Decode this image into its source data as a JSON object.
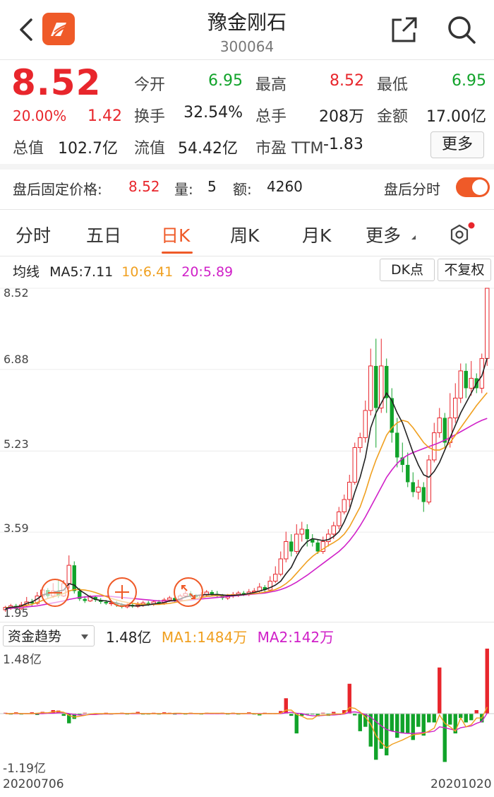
{
  "header": {
    "title": "豫金刚石",
    "code": "300064"
  },
  "quote": {
    "price": "8.52",
    "change_pct": "20.00%",
    "change_abs": "1.42",
    "fields": [
      {
        "label": "今开",
        "value": "6.95",
        "color": "#11a32a"
      },
      {
        "label": "最高",
        "value": "8.52",
        "color": "#e8262c"
      },
      {
        "label": "最低",
        "value": "6.95",
        "color": "#11a32a"
      },
      {
        "label": "换手",
        "value": "32.54%",
        "color": "#222222"
      },
      {
        "label": "总手",
        "value": "208万",
        "color": "#222222"
      },
      {
        "label": "金额",
        "value": "17.00亿",
        "color": "#222222"
      },
      {
        "label": "总值",
        "value": "102.7亿",
        "color": "#222222"
      },
      {
        "label": "流值",
        "value": "54.42亿",
        "color": "#222222"
      },
      {
        "label": "市盈 TTM",
        "value": "-1.83",
        "color": "#222222"
      }
    ],
    "more_label": "更多"
  },
  "after_hours": {
    "label": "盘后固定价格:",
    "price": "8.52",
    "vol_label": "量:",
    "vol": "5",
    "amt_label": "额:",
    "amt": "4260",
    "timeshare_label": "盘后分时",
    "toggle_on": true
  },
  "tabs": [
    {
      "label": "分时",
      "active": false
    },
    {
      "label": "五日",
      "active": false
    },
    {
      "label": "日K",
      "active": true
    },
    {
      "label": "周K",
      "active": false
    },
    {
      "label": "月K",
      "active": false
    },
    {
      "label": "更多",
      "active": false
    }
  ],
  "ma_legend": {
    "prefix": "均线",
    "ma5": "MA5:7.11",
    "ma10": "10:6.41",
    "ma20": "20:5.89",
    "ma5_color": "#222222",
    "ma10_color": "#f0a020",
    "ma20_color": "#d020c8"
  },
  "buttons": {
    "dk": "DK点",
    "adjust": "不复权"
  },
  "axis": {
    "price_ticks": [
      "8.52",
      "6.88",
      "5.23",
      "3.59",
      "1.95"
    ],
    "flow_ticks": [
      "1.48亿",
      "-1.19亿"
    ],
    "start_date": "20200706",
    "end_date": "20201020"
  },
  "flow": {
    "select_label": "资金趋势",
    "value": "1.48亿",
    "ma1": "MA1:1484万",
    "ma2": "MA2:142万"
  },
  "colors": {
    "up": "#e8262c",
    "down": "#11a32a",
    "accent": "#ef5a28"
  },
  "chart_data": [
    {
      "type": "candlestick",
      "title": "",
      "ylim": [
        1.95,
        8.52
      ],
      "series": [
        {
          "name": "MA5",
          "color": "#222222"
        },
        {
          "name": "10",
          "color": "#f0a020"
        },
        {
          "name": "20",
          "color": "#d020c8"
        }
      ],
      "candles": [
        [
          2.02,
          2.07,
          1.98,
          2.1
        ],
        [
          2.07,
          2.1,
          2.02,
          2.14
        ],
        [
          2.1,
          2.04,
          2.0,
          2.14
        ],
        [
          2.04,
          2.12,
          2.02,
          2.18
        ],
        [
          2.12,
          2.18,
          2.08,
          2.28
        ],
        [
          2.18,
          2.15,
          2.1,
          2.24
        ],
        [
          2.15,
          2.3,
          2.12,
          2.38
        ],
        [
          2.3,
          2.42,
          2.28,
          2.46
        ],
        [
          2.42,
          2.3,
          2.25,
          2.46
        ],
        [
          2.3,
          2.4,
          2.26,
          2.56
        ],
        [
          2.4,
          2.3,
          2.26,
          2.62
        ],
        [
          2.3,
          2.55,
          2.28,
          2.62
        ],
        [
          2.55,
          2.92,
          2.45,
          3.12
        ],
        [
          2.92,
          2.4,
          2.35,
          3.0
        ],
        [
          2.4,
          2.24,
          2.2,
          2.46
        ],
        [
          2.24,
          2.2,
          2.16,
          2.3
        ],
        [
          2.2,
          2.28,
          2.18,
          2.32
        ],
        [
          2.28,
          2.22,
          2.18,
          2.3
        ],
        [
          2.22,
          2.18,
          2.14,
          2.26
        ],
        [
          2.18,
          2.15,
          2.12,
          2.22
        ],
        [
          2.15,
          2.16,
          2.1,
          2.2
        ],
        [
          2.16,
          2.12,
          2.08,
          2.2
        ],
        [
          2.12,
          2.08,
          2.05,
          2.16
        ],
        [
          2.08,
          2.12,
          2.05,
          2.16
        ],
        [
          2.12,
          2.09,
          2.06,
          2.16
        ],
        [
          2.09,
          2.12,
          2.06,
          2.18
        ],
        [
          2.12,
          2.16,
          2.08,
          2.2
        ],
        [
          2.16,
          2.14,
          2.1,
          2.2
        ],
        [
          2.14,
          2.18,
          2.1,
          2.22
        ],
        [
          2.18,
          2.15,
          2.12,
          2.22
        ],
        [
          2.15,
          2.22,
          2.12,
          2.26
        ],
        [
          2.22,
          2.26,
          2.18,
          2.3
        ],
        [
          2.26,
          2.22,
          2.18,
          2.3
        ],
        [
          2.22,
          2.3,
          2.2,
          2.34
        ],
        [
          2.3,
          2.35,
          2.26,
          2.4
        ],
        [
          2.35,
          2.3,
          2.26,
          2.4
        ],
        [
          2.3,
          2.28,
          2.24,
          2.34
        ],
        [
          2.28,
          2.32,
          2.24,
          2.38
        ],
        [
          2.32,
          2.38,
          2.28,
          2.42
        ],
        [
          2.38,
          2.34,
          2.3,
          2.42
        ],
        [
          2.34,
          2.3,
          2.26,
          2.4
        ],
        [
          2.3,
          2.26,
          2.22,
          2.34
        ],
        [
          2.26,
          2.3,
          2.22,
          2.34
        ],
        [
          2.3,
          2.33,
          2.26,
          2.38
        ],
        [
          2.33,
          2.36,
          2.28,
          2.4
        ],
        [
          2.36,
          2.34,
          2.3,
          2.4
        ],
        [
          2.34,
          2.38,
          2.3,
          2.44
        ],
        [
          2.38,
          2.4,
          2.34,
          2.46
        ],
        [
          2.4,
          2.48,
          2.36,
          2.56
        ],
        [
          2.48,
          2.42,
          2.38,
          2.52
        ],
        [
          2.42,
          2.6,
          2.4,
          2.7
        ],
        [
          2.6,
          2.74,
          2.56,
          2.9
        ],
        [
          2.74,
          3.05,
          2.7,
          3.2
        ],
        [
          3.05,
          3.4,
          2.98,
          3.6
        ],
        [
          3.4,
          3.2,
          3.1,
          3.55
        ],
        [
          3.2,
          3.55,
          3.15,
          3.75
        ],
        [
          3.55,
          3.65,
          3.4,
          3.8
        ],
        [
          3.65,
          3.45,
          3.3,
          3.75
        ],
        [
          3.45,
          3.38,
          3.3,
          3.55
        ],
        [
          3.38,
          3.2,
          3.15,
          3.45
        ],
        [
          3.2,
          3.4,
          3.15,
          3.5
        ],
        [
          3.4,
          3.55,
          3.3,
          3.65
        ],
        [
          3.55,
          3.72,
          3.45,
          3.8
        ],
        [
          3.72,
          4.0,
          3.65,
          4.1
        ],
        [
          4.0,
          4.25,
          3.95,
          4.35
        ],
        [
          4.25,
          4.6,
          4.1,
          4.75
        ],
        [
          4.6,
          5.3,
          4.55,
          5.4
        ],
        [
          5.3,
          5.5,
          5.2,
          5.6
        ],
        [
          5.5,
          6.05,
          5.4,
          6.25
        ],
        [
          6.05,
          6.95,
          5.95,
          7.3
        ],
        [
          6.95,
          6.1,
          5.3,
          7.5
        ],
        [
          6.1,
          6.95,
          6.0,
          7.5
        ],
        [
          6.95,
          6.3,
          6.0,
          7.1
        ],
        [
          6.3,
          5.6,
          5.4,
          6.5
        ],
        [
          5.6,
          5.1,
          4.9,
          5.9
        ],
        [
          5.1,
          4.95,
          4.8,
          5.4
        ],
        [
          4.95,
          4.6,
          4.5,
          5.2
        ],
        [
          4.6,
          4.4,
          4.3,
          4.8
        ],
        [
          4.4,
          4.5,
          4.25,
          4.65
        ],
        [
          4.5,
          4.2,
          4.0,
          4.6
        ],
        [
          4.2,
          5.05,
          4.15,
          5.15
        ],
        [
          5.05,
          5.6,
          5.0,
          5.8
        ],
        [
          5.6,
          5.9,
          5.5,
          6.1
        ],
        [
          5.9,
          5.4,
          5.3,
          6.0
        ],
        [
          5.4,
          5.9,
          5.3,
          6.4
        ],
        [
          5.9,
          6.3,
          5.8,
          6.6
        ],
        [
          6.3,
          6.85,
          6.2,
          7.0
        ],
        [
          6.85,
          6.5,
          6.3,
          7.0
        ],
        [
          6.5,
          6.7,
          6.35,
          7.05
        ],
        [
          6.7,
          6.5,
          6.4,
          6.8
        ],
        [
          6.5,
          7.1,
          6.4,
          7.2
        ],
        [
          7.1,
          8.52,
          6.95,
          8.52
        ]
      ],
      "ma5": [
        2.05,
        2.07,
        2.08,
        2.1,
        2.15,
        2.18,
        2.24,
        2.32,
        2.35,
        2.37,
        2.4,
        2.42,
        2.55,
        2.52,
        2.42,
        2.35,
        2.28,
        2.23,
        2.21,
        2.2,
        2.18,
        2.16,
        2.13,
        2.11,
        2.1,
        2.1,
        2.11,
        2.12,
        2.14,
        2.15,
        2.17,
        2.2,
        2.21,
        2.24,
        2.28,
        2.3,
        2.31,
        2.32,
        2.33,
        2.33,
        2.33,
        2.32,
        2.31,
        2.31,
        2.32,
        2.33,
        2.35,
        2.37,
        2.4,
        2.43,
        2.47,
        2.52,
        2.6,
        2.75,
        2.88,
        3.1,
        3.28,
        3.4,
        3.46,
        3.44,
        3.42,
        3.44,
        3.5,
        3.6,
        3.8,
        4.05,
        4.4,
        4.7,
        5.1,
        5.7,
        6.0,
        6.2,
        6.4,
        6.25,
        6.0,
        5.8,
        5.5,
        5.2,
        4.95,
        4.75,
        4.7,
        4.82,
        5.0,
        5.25,
        5.5,
        5.75,
        6.0,
        6.2,
        6.4,
        6.6,
        6.75,
        7.11
      ],
      "ma10": [
        2.06,
        2.07,
        2.08,
        2.09,
        2.11,
        2.13,
        2.17,
        2.21,
        2.25,
        2.28,
        2.31,
        2.35,
        2.4,
        2.43,
        2.43,
        2.42,
        2.4,
        2.37,
        2.33,
        2.29,
        2.25,
        2.22,
        2.19,
        2.17,
        2.15,
        2.14,
        2.13,
        2.13,
        2.13,
        2.13,
        2.14,
        2.15,
        2.17,
        2.19,
        2.21,
        2.23,
        2.25,
        2.27,
        2.29,
        2.3,
        2.31,
        2.31,
        2.32,
        2.32,
        2.32,
        2.33,
        2.34,
        2.35,
        2.36,
        2.38,
        2.4,
        2.43,
        2.48,
        2.55,
        2.64,
        2.76,
        2.88,
        3.0,
        3.1,
        3.18,
        3.25,
        3.32,
        3.38,
        3.45,
        3.55,
        3.7,
        3.9,
        4.1,
        4.4,
        4.75,
        5.05,
        5.3,
        5.55,
        5.7,
        5.8,
        5.85,
        5.82,
        5.7,
        5.55,
        5.4,
        5.3,
        5.25,
        5.25,
        5.3,
        5.4,
        5.55,
        5.7,
        5.85,
        6.0,
        6.15,
        6.28,
        6.41
      ],
      "ma20": [
        2.04,
        2.05,
        2.06,
        2.07,
        2.08,
        2.09,
        2.1,
        2.12,
        2.14,
        2.16,
        2.18,
        2.2,
        2.23,
        2.25,
        2.27,
        2.28,
        2.29,
        2.3,
        2.3,
        2.3,
        2.29,
        2.28,
        2.27,
        2.26,
        2.25,
        2.24,
        2.23,
        2.22,
        2.21,
        2.2,
        2.2,
        2.2,
        2.2,
        2.2,
        2.21,
        2.22,
        2.23,
        2.24,
        2.25,
        2.26,
        2.27,
        2.28,
        2.29,
        2.3,
        2.31,
        2.32,
        2.33,
        2.34,
        2.35,
        2.36,
        2.38,
        2.4,
        2.43,
        2.47,
        2.52,
        2.58,
        2.65,
        2.72,
        2.8,
        2.88,
        2.96,
        3.04,
        3.12,
        3.2,
        3.3,
        3.42,
        3.56,
        3.72,
        3.9,
        4.1,
        4.3,
        4.5,
        4.7,
        4.85,
        4.98,
        5.08,
        5.15,
        5.2,
        5.24,
        5.28,
        5.32,
        5.36,
        5.4,
        5.45,
        5.5,
        5.56,
        5.62,
        5.68,
        5.74,
        5.8,
        5.85,
        5.89
      ]
    },
    {
      "type": "bar",
      "title": "",
      "ylim": [
        -1.19,
        1.48
      ],
      "unit": "亿",
      "values": [
        0.02,
        -0.02,
        0.03,
        -0.02,
        0.01,
        0.03,
        -0.03,
        0.04,
        0.02,
        0.08,
        0.07,
        -0.05,
        -0.22,
        -0.12,
        -0.03,
        0.02,
        -0.02,
        0.01,
        -0.02,
        0.02,
        -0.01,
        0.01,
        0.02,
        -0.01,
        0.01,
        0.04,
        -0.02,
        -0.01,
        0.02,
        -0.02,
        0.03,
        0.02,
        -0.02,
        0.01,
        -0.01,
        0.02,
        0.01,
        -0.01,
        0.02,
        0.01,
        0.01,
        0.02,
        -0.01,
        0.02,
        -0.02,
        0.01,
        0.03,
        -0.02,
        -0.04,
        0.02,
        0.01,
        0.01,
        0.06,
        0.35,
        -0.05,
        -0.45,
        -0.05,
        -0.02,
        -0.01,
        -0.06,
        0.02,
        -0.05,
        0.04,
        -0.03,
        0.08,
        0.68,
        -0.04,
        -0.4,
        -0.3,
        -0.75,
        -1.05,
        -0.8,
        -0.95,
        -0.4,
        -0.55,
        -0.45,
        -0.45,
        -0.6,
        -0.3,
        -0.5,
        -0.2,
        -0.2,
        1.05,
        -1.1,
        -0.25,
        -0.45,
        -0.1,
        -0.2,
        -0.15,
        0.08,
        -0.2,
        1.48
      ],
      "ma1": [
        0.0,
        0.0,
        0.01,
        0.0,
        0.0,
        0.0,
        0.01,
        0.02,
        0.02,
        0.04,
        0.05,
        0.03,
        -0.04,
        -0.08,
        -0.06,
        -0.04,
        -0.01,
        0.0,
        0.0,
        0.0,
        0.0,
        0.0,
        0.01,
        0.0,
        0.01,
        0.01,
        0.0,
        0.0,
        0.0,
        0.0,
        0.0,
        0.0,
        0.01,
        0.01,
        0.0,
        0.01,
        0.0,
        0.0,
        0.01,
        0.01,
        0.01,
        0.01,
        0.0,
        0.01,
        0.0,
        0.0,
        0.01,
        0.0,
        -0.01,
        0.0,
        0.0,
        0.0,
        0.01,
        0.08,
        0.08,
        -0.02,
        -0.06,
        -0.12,
        -0.12,
        -0.04,
        -0.03,
        -0.03,
        -0.01,
        -0.01,
        0.0,
        0.14,
        0.12,
        0.04,
        -0.08,
        -0.24,
        -0.5,
        -0.66,
        -0.78,
        -0.7,
        -0.65,
        -0.6,
        -0.54,
        -0.48,
        -0.47,
        -0.45,
        -0.4,
        -0.33,
        -0.03,
        -0.22,
        -0.3,
        -0.4,
        -0.1,
        -0.3,
        -0.25,
        -0.1,
        -0.1,
        0.15
      ],
      "ma2": [
        0.0,
        0.0,
        0.0,
        0.0,
        0.0,
        0.0,
        0.0,
        0.0,
        0.01,
        0.01,
        0.02,
        0.02,
        0.0,
        -0.02,
        -0.03,
        -0.03,
        -0.02,
        -0.02,
        -0.01,
        -0.01,
        -0.01,
        0.0,
        0.0,
        0.0,
        0.0,
        0.0,
        0.0,
        0.0,
        0.0,
        0.0,
        0.0,
        0.0,
        0.0,
        0.0,
        0.0,
        0.0,
        0.0,
        0.0,
        0.0,
        0.0,
        0.0,
        0.0,
        0.0,
        0.0,
        0.0,
        0.0,
        0.0,
        0.0,
        0.0,
        0.0,
        0.0,
        0.0,
        0.0,
        0.02,
        0.03,
        0.01,
        0.0,
        -0.03,
        -0.05,
        -0.05,
        -0.04,
        -0.03,
        -0.03,
        -0.02,
        -0.01,
        0.03,
        0.04,
        0.02,
        -0.02,
        -0.08,
        -0.18,
        -0.28,
        -0.36,
        -0.4,
        -0.42,
        -0.44,
        -0.45,
        -0.45,
        -0.44,
        -0.43,
        -0.42,
        -0.4,
        -0.3,
        -0.32,
        -0.35,
        -0.38,
        -0.32,
        -0.3,
        -0.28,
        -0.22,
        -0.18,
        0.01
      ]
    }
  ]
}
